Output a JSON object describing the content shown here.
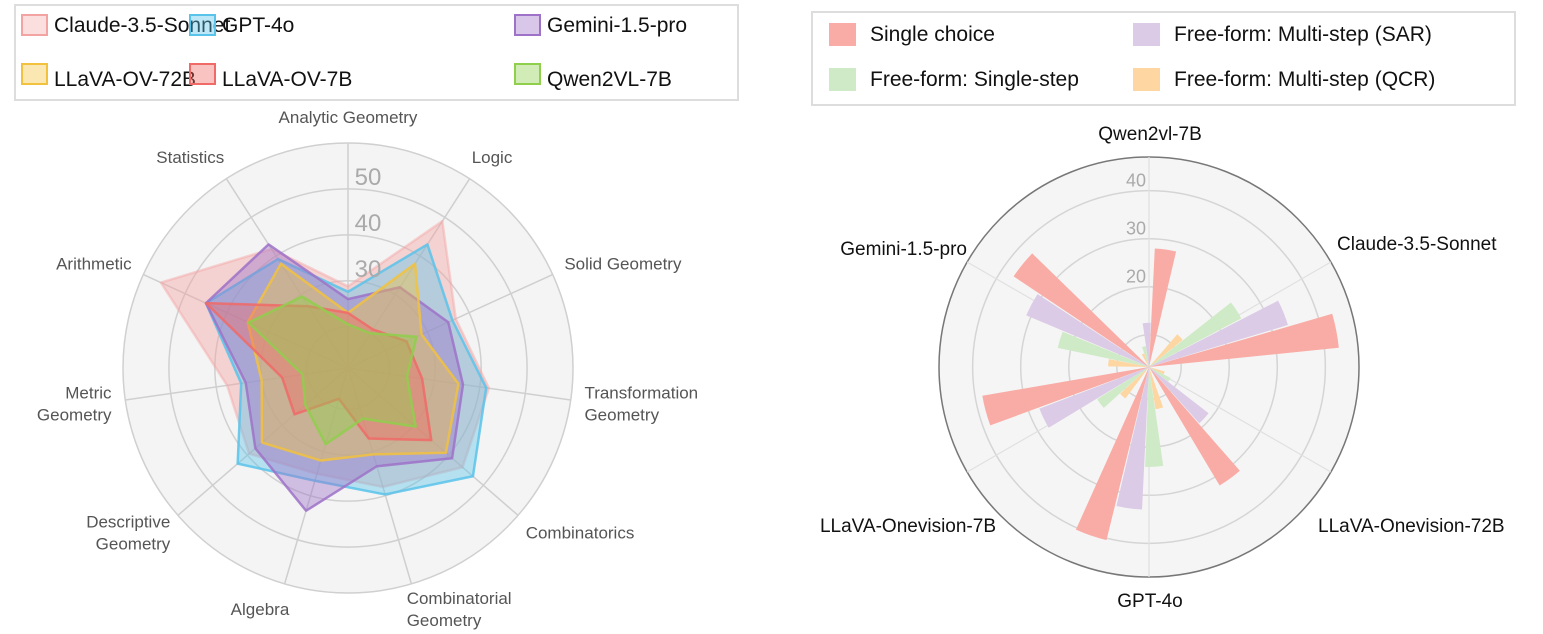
{
  "chart_data": [
    {
      "type": "radar",
      "categories": [
        "Analytic Geometry",
        "Logic",
        "Solid Geometry",
        "Transformation Geometry",
        "Combinatorics",
        "Combinatorial Geometry",
        "Algebra",
        "Descriptive Geometry",
        "Metric Geometry",
        "Arithmetic",
        "Statistics"
      ],
      "category_lines": [
        [
          "Analytic Geometry"
        ],
        [
          "Logic"
        ],
        [
          "Solid Geometry"
        ],
        [
          "Transformation",
          "Geometry"
        ],
        [
          "Combinatorics"
        ],
        [
          "Combinatorial",
          "Geometry"
        ],
        [
          "Algebra"
        ],
        [
          "Descriptive",
          "Geometry"
        ],
        [
          "Metric",
          "Geometry"
        ],
        [
          "Arithmetic"
        ],
        [
          "Statistics"
        ]
      ],
      "radial_ticks": [
        "30",
        "40",
        "50"
      ],
      "rlim": [
        11,
        60
      ],
      "grid_rings": [
        20,
        30,
        40,
        50,
        60
      ],
      "legend_position": "top",
      "series": [
        {
          "name": "Claude-3.5-Sonnet",
          "color": "#f4a3a3",
          "values": [
            28.8,
            49,
            36.8,
            42,
            44,
            38,
            35,
            39.5,
            37.6,
            55.8,
            41.8
          ]
        },
        {
          "name": "GPT-4o",
          "color": "#5ac3ea",
          "values": [
            27.6,
            43,
            36,
            41.4,
            47,
            39.7,
            36.6,
            42.8,
            34.5,
            45,
            39.2
          ]
        },
        {
          "name": "Gemini-1.5-pro",
          "color": "#9d72c8",
          "values": [
            26,
            31.9,
            35,
            36.3,
            41,
            33.3,
            43.4,
            37.7,
            33.5,
            45,
            43
          ]
        },
        {
          "name": "LLaVA-OV-72B",
          "color": "#f2c23e",
          "values": [
            23,
            38,
            28.6,
            35.3,
            39.2,
            30.6,
            32,
            35.8,
            30,
            35,
            38
          ]
        },
        {
          "name": "LLaVA-OV-7B",
          "color": "#f06a67",
          "values": [
            23,
            21,
            25,
            27.3,
            35,
            27,
            18,
            26.4,
            25.5,
            45,
            27
          ]
        },
        {
          "name": "Qwen2VL-7B",
          "color": "#8fcf4c",
          "values": [
            20.5,
            20,
            27.4,
            24,
            30.5,
            22.5,
            28.3,
            23.3,
            21,
            34.8,
            29.5
          ]
        }
      ]
    },
    {
      "type": "bar",
      "subtype": "polar",
      "categories": [
        "Qwen2vl-7B",
        "Claude-3.5-Sonnet",
        "LLaVA-Onevision-72B",
        "GPT-4o",
        "LLaVA-Onevision-7B",
        "Gemini-1.5-pro"
      ],
      "radial_ticks": [
        "20",
        "30",
        "40"
      ],
      "rlim": [
        3.3,
        47
      ],
      "grid_rings": [
        10,
        20,
        30,
        40
      ],
      "legend_position": "top",
      "series": [
        {
          "name": "Single choice",
          "color": "#f9aca6",
          "values": [
            28,
            43,
            32,
            40.4,
            38.5,
            37.2
          ]
        },
        {
          "name": "Free-form: Single-step",
          "color": "#cfeac6",
          "values": [
            7.7,
            25,
            8.3,
            24.1,
            16,
            22.7
          ]
        },
        {
          "name": "Free-form: Multi-step (SAR)",
          "color": "#dccbe6",
          "values": [
            12.5,
            33.5,
            19,
            33,
            27.7,
            31
          ]
        },
        {
          "name": "Free-form: Multi-step (QCR)",
          "color": "#fdd6a2",
          "values": [
            6.3,
            12.3,
            6.7,
            12.2,
            11.5,
            11.8
          ]
        }
      ]
    }
  ]
}
